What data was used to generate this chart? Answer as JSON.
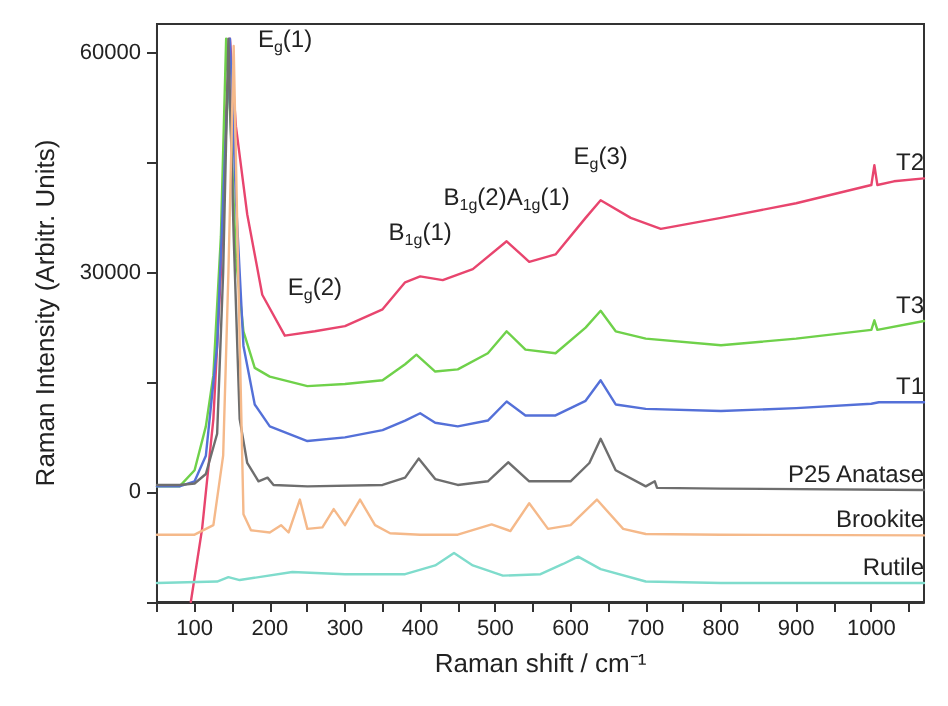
{
  "chart_data": {
    "type": "line",
    "xlabel": "Raman shift / cm⁻¹",
    "ylabel": "Raman Intensity (Arbitr. Units)",
    "xlim": [
      50,
      1070
    ],
    "ylim": [
      -15000,
      64000
    ],
    "xticks": [
      {
        "value": 50,
        "label": null
      },
      100,
      {
        "value": 150,
        "label": null
      },
      200,
      {
        "value": 250,
        "label": null
      },
      300,
      {
        "value": 350,
        "label": null
      },
      400,
      {
        "value": 450,
        "label": null
      },
      500,
      {
        "value": 550,
        "label": null
      },
      600,
      {
        "value": 650,
        "label": null
      },
      700,
      {
        "value": 750,
        "label": null
      },
      800,
      {
        "value": 850,
        "label": null
      },
      900,
      {
        "value": 950,
        "label": null
      },
      1000,
      {
        "value": 1050,
        "label": null
      }
    ],
    "yticks": [
      {
        "value": -15000,
        "label": null
      },
      0,
      {
        "value": 15000,
        "label": null
      },
      30000,
      {
        "value": 45000,
        "label": null
      },
      60000
    ],
    "grid": false,
    "legend": false,
    "marker": "none",
    "line_style": "solid",
    "annotations": [
      {
        "text": "E$_{g}$(1)",
        "x": 147,
        "y": 62000
      },
      {
        "text": "E$_{g}$(2)",
        "x": 260,
        "y": 22000
      },
      {
        "text": "B$_{1g}$(1)",
        "x": 400,
        "y": 29500
      },
      {
        "text": "B$_{1g}$(2)A$_{1g}$(1)",
        "x": 515,
        "y": 34300
      },
      {
        "text": "E$_{g}$(3)",
        "x": 640,
        "y": 39900
      }
    ],
    "series": [
      {
        "name": "T2",
        "color": "#e8456e",
        "x": [
          95,
          110,
          125,
          135,
          142,
          147,
          155,
          170,
          190,
          220,
          260,
          300,
          350,
          380,
          400,
          430,
          470,
          515,
          545,
          580,
          620,
          640,
          680,
          720,
          800,
          900,
          1000,
          1004,
          1008,
          1030,
          1070
        ],
        "values": [
          -15000,
          -5000,
          10000,
          30000,
          52000,
          62000,
          50000,
          38000,
          27000,
          21400,
          22000,
          22700,
          25000,
          28700,
          29500,
          29000,
          30500,
          34300,
          31500,
          32500,
          37500,
          39900,
          37500,
          36000,
          37500,
          39500,
          42000,
          44700,
          42000,
          42500,
          42900
        ]
      },
      {
        "name": "T3",
        "color": "#6fd14a",
        "x": [
          50,
          80,
          100,
          115,
          125,
          135,
          142,
          148,
          155,
          165,
          180,
          200,
          250,
          300,
          350,
          380,
          395,
          420,
          450,
          490,
          515,
          540,
          580,
          620,
          640,
          660,
          700,
          800,
          900,
          1000,
          1004,
          1008,
          1070
        ],
        "values": [
          800,
          800,
          3000,
          9000,
          16000,
          35000,
          62000,
          50000,
          32000,
          22000,
          17000,
          15800,
          14500,
          14800,
          15300,
          17500,
          18800,
          16500,
          16800,
          19000,
          22000,
          19500,
          19000,
          22500,
          24800,
          22000,
          21000,
          20100,
          21000,
          22200,
          23500,
          22200,
          23400
        ]
      },
      {
        "name": "T1",
        "color": "#5470d8",
        "x": [
          50,
          80,
          100,
          115,
          130,
          140,
          147,
          155,
          165,
          180,
          200,
          250,
          300,
          350,
          380,
          400,
          420,
          450,
          490,
          515,
          540,
          580,
          620,
          640,
          660,
          700,
          800,
          900,
          1000,
          1010,
          1070
        ],
        "values": [
          800,
          800,
          1500,
          5000,
          20000,
          45000,
          62000,
          40000,
          20000,
          12000,
          9000,
          7000,
          7500,
          8500,
          9800,
          10800,
          9500,
          9000,
          9800,
          12400,
          10500,
          10500,
          12500,
          15300,
          12000,
          11400,
          11100,
          11500,
          12100,
          12300,
          12300
        ]
      },
      {
        "name": "P25 Anatase",
        "color": "#6e6e6e",
        "x": [
          50,
          80,
          100,
          115,
          130,
          138,
          145,
          152,
          160,
          170,
          185,
          197,
          205,
          250,
          350,
          380,
          398,
          420,
          450,
          490,
          517,
          545,
          600,
          625,
          640,
          660,
          700,
          712,
          715,
          800,
          1070
        ],
        "values": [
          1000,
          1000,
          1200,
          2500,
          8000,
          30000,
          62000,
          35000,
          10000,
          4000,
          1500,
          2000,
          1000,
          800,
          1000,
          2000,
          4600,
          1800,
          1000,
          1500,
          4100,
          1500,
          1500,
          4000,
          7300,
          3000,
          800,
          1500,
          600,
          500,
          300
        ]
      },
      {
        "name": "Brookite",
        "color": "#f5b98a",
        "x": [
          50,
          100,
          125,
          138,
          145,
          152,
          158,
          165,
          175,
          200,
          215,
          225,
          240,
          250,
          270,
          285,
          300,
          320,
          340,
          360,
          400,
          450,
          495,
          520,
          545,
          570,
          600,
          635,
          670,
          700,
          800,
          1070
        ],
        "values": [
          -5800,
          -5800,
          -4500,
          5000,
          30000,
          61000,
          30000,
          -3000,
          -5200,
          -5500,
          -4500,
          -5500,
          -1000,
          -5000,
          -4800,
          -2300,
          -4500,
          -1000,
          -4500,
          -5600,
          -5800,
          -5800,
          -4400,
          -5300,
          -1500,
          -5000,
          -4500,
          -1000,
          -5000,
          -5700,
          -5800,
          -5900
        ]
      },
      {
        "name": "Rutile",
        "color": "#7fdccc",
        "x": [
          50,
          130,
          145,
          160,
          230,
          300,
          380,
          420,
          445,
          470,
          510,
          560,
          590,
          610,
          640,
          700,
          800,
          1070
        ],
        "values": [
          -12400,
          -12200,
          -11600,
          -12000,
          -10900,
          -11200,
          -11200,
          -10000,
          -8300,
          -10000,
          -11400,
          -11200,
          -9800,
          -8800,
          -10500,
          -12200,
          -12400,
          -12400
        ]
      }
    ]
  }
}
